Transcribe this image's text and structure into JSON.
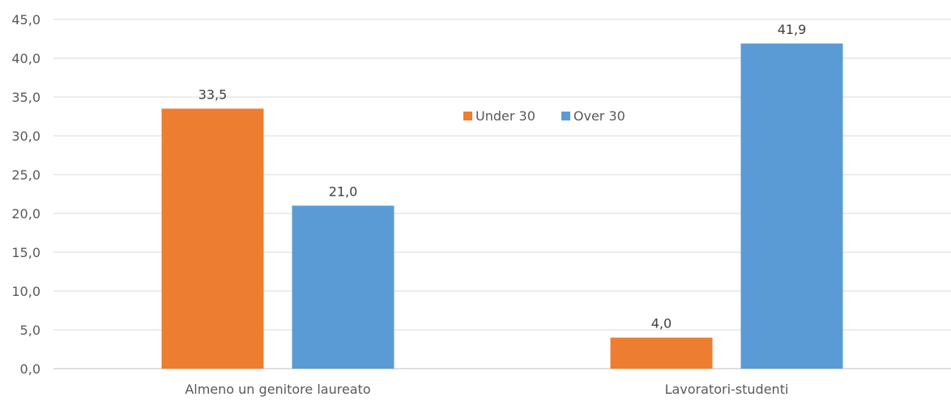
{
  "chart_data": {
    "type": "bar",
    "categories": [
      "Almeno un genitore laureato",
      "Lavoratori-studenti"
    ],
    "series": [
      {
        "name": "Under 30",
        "color": "#ED7D31",
        "values": [
          33.5,
          4.0
        ],
        "labels": [
          "33,5",
          "4,0"
        ]
      },
      {
        "name": "Over 30",
        "color": "#5B9BD5",
        "values": [
          21.0,
          41.9
        ],
        "labels": [
          "21,0",
          "41,9"
        ]
      }
    ],
    "ylim": [
      0,
      45
    ],
    "yticks": [
      0,
      5,
      10,
      15,
      20,
      25,
      30,
      35,
      40,
      45
    ],
    "ytick_labels": [
      "0,0",
      "5,0",
      "10,0",
      "15,0",
      "20,0",
      "25,0",
      "30,0",
      "35,0",
      "40,0",
      "45,0"
    ],
    "grid": true,
    "legend_position": "top-center"
  }
}
